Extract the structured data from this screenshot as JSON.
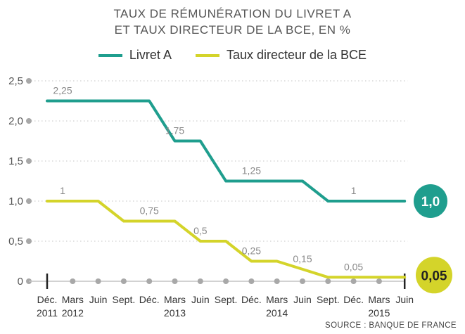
{
  "chart_data": {
    "type": "line",
    "title_lines": [
      "TAUX DE RÉMUNÉRATION DU LIVRET A",
      "ET TAUX DIRECTEUR DE LA BCE, EN %"
    ],
    "source": "SOURCE : BANQUE DE FRANCE",
    "ylim": [
      0,
      2.5
    ],
    "yticks": [
      0,
      0.5,
      1.0,
      1.5,
      2.0,
      2.5
    ],
    "ytick_labels": [
      "0",
      "0,5",
      "1,0",
      "1,5",
      "2,0",
      "2,5"
    ],
    "x_months": [
      "Déc.",
      "Mars",
      "Juin",
      "Sept.",
      "Déc.",
      "Mars",
      "Juin",
      "Sept.",
      "Déc.",
      "Mars",
      "Juin",
      "Sept.",
      "Déc.",
      "Mars",
      "Juin"
    ],
    "x_years": [
      "2011",
      "2012",
      "",
      "",
      "",
      "2013",
      "",
      "",
      "",
      "2014",
      "",
      "",
      "",
      "2015",
      ""
    ],
    "series": [
      {
        "name": "Livret A",
        "color": "#1f9e8e",
        "values": [
          2.25,
          2.25,
          2.25,
          2.25,
          2.25,
          1.75,
          1.75,
          1.25,
          1.25,
          1.25,
          1.25,
          1.0,
          1.0,
          1.0,
          1.0
        ],
        "labels": [
          {
            "index": 0,
            "text": "2,25"
          },
          {
            "index": 5,
            "text": "1,75"
          },
          {
            "index": 8,
            "text": "1,25"
          },
          {
            "index": 12,
            "text": "1"
          }
        ],
        "end_badge": "1,0"
      },
      {
        "name": "Taux directeur de la BCE",
        "color": "#d4d42a",
        "values": [
          1.0,
          1.0,
          1.0,
          0.75,
          0.75,
          0.75,
          0.5,
          0.5,
          0.25,
          0.25,
          0.15,
          0.05,
          0.05,
          0.05,
          0.05
        ],
        "labels": [
          {
            "index": 0,
            "text": "1"
          },
          {
            "index": 4,
            "text": "0,75"
          },
          {
            "index": 6,
            "text": "0,5"
          },
          {
            "index": 8,
            "text": "0,25"
          },
          {
            "index": 10,
            "text": "0,15"
          },
          {
            "index": 12,
            "text": "0,05"
          }
        ],
        "end_badge": "0,05"
      }
    ]
  }
}
